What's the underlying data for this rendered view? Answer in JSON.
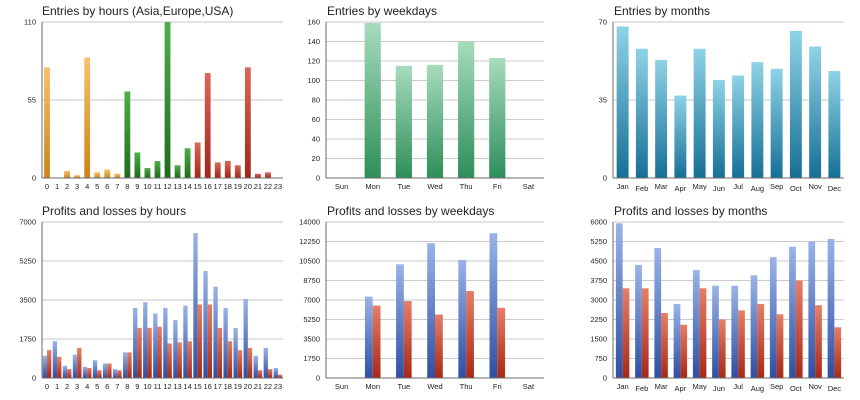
{
  "colors": {
    "hour_asia_top": "#f6c26e",
    "hour_asia_bottom": "#c98418",
    "hour_europe_top": "#4fae4a",
    "hour_europe_bottom": "#1e6b1b",
    "hour_usa_top": "#d8695a",
    "hour_usa_bottom": "#a02618",
    "weekday_top": "#a6dcbd",
    "weekday_bottom": "#2e8e5a",
    "month_top": "#8fd3e6",
    "month_bottom": "#166f96",
    "profit_top": "#9ab3e8",
    "profit_bottom": "#2e4fa3",
    "loss_top": "#e57f68",
    "loss_bottom": "#a82816",
    "grid": "#b8b8b8",
    "axis": "#6a6a6a"
  },
  "chart_data": [
    {
      "type": "bar",
      "title": "Entries by hours (Asia,Europe,USA)",
      "categories": [
        "0",
        "1",
        "2",
        "3",
        "4",
        "5",
        "6",
        "7",
        "8",
        "9",
        "10",
        "11",
        "12",
        "13",
        "14",
        "15",
        "16",
        "17",
        "18",
        "19",
        "20",
        "21",
        "22",
        "23"
      ],
      "values": [
        78,
        0,
        5,
        2,
        85,
        4,
        6,
        3,
        61,
        18,
        7,
        12,
        110,
        9,
        21,
        25,
        74,
        11,
        12,
        9,
        78,
        3,
        4,
        0
      ],
      "groups": [
        "asia",
        "asia",
        "asia",
        "asia",
        "asia",
        "asia",
        "asia",
        "asia",
        "europe",
        "europe",
        "europe",
        "europe",
        "europe",
        "europe",
        "europe",
        "usa",
        "usa",
        "usa",
        "usa",
        "usa",
        "usa",
        "usa",
        "usa",
        "usa"
      ],
      "yticks": [
        0,
        55,
        110
      ],
      "ylim": [
        0,
        110
      ]
    },
    {
      "type": "bar",
      "title": "Entries by weekdays",
      "categories": [
        "Sun",
        "Mon",
        "Tue",
        "Wed",
        "Thu",
        "Fri",
        "Sat"
      ],
      "values": [
        0,
        159,
        115,
        116,
        140,
        123,
        0
      ],
      "yticks": [
        0,
        20,
        40,
        60,
        80,
        100,
        120,
        140,
        160
      ],
      "ylim": [
        0,
        160
      ]
    },
    {
      "type": "bar",
      "title": "Entries by months",
      "categories": [
        "Jan",
        "Feb",
        "Mar",
        "Apr",
        "May",
        "Jun",
        "Jul",
        "Aug",
        "Sep",
        "Oct",
        "Nov",
        "Dec"
      ],
      "values": [
        68,
        58,
        53,
        37,
        58,
        44,
        46,
        52,
        49,
        66,
        59,
        48
      ],
      "yticks": [
        0,
        35,
        70
      ],
      "ylim": [
        0,
        70
      ]
    },
    {
      "type": "bar",
      "title": "Profits and losses by hours",
      "categories": [
        "0",
        "1",
        "2",
        "3",
        "4",
        "5",
        "6",
        "7",
        "8",
        "9",
        "10",
        "11",
        "12",
        "13",
        "14",
        "15",
        "16",
        "17",
        "18",
        "19",
        "20",
        "21",
        "22",
        "23"
      ],
      "series": [
        {
          "values": [
            1000,
            1650,
            550,
            1050,
            500,
            800,
            650,
            400,
            1150,
            3150,
            3400,
            2900,
            3150,
            2600,
            3250,
            6500,
            4800,
            4100,
            3150,
            2250,
            3550,
            1000,
            1350,
            450
          ]
        },
        {
          "values": [
            1250,
            950,
            400,
            1350,
            450,
            350,
            650,
            350,
            1150,
            2250,
            2250,
            2300,
            1550,
            1600,
            1650,
            3300,
            3300,
            2250,
            1650,
            1250,
            1350,
            350,
            400,
            150
          ]
        }
      ],
      "yticks": [
        0,
        1750,
        3500,
        5250,
        7000
      ],
      "ylim": [
        0,
        7000
      ]
    },
    {
      "type": "bar",
      "title": "Profits and losses by weekdays",
      "categories": [
        "Sun",
        "Mon",
        "Tue",
        "Wed",
        "Thu",
        "Fri",
        "Sat"
      ],
      "series": [
        {
          "values": [
            0,
            7300,
            10200,
            12100,
            10600,
            13000,
            0
          ]
        },
        {
          "values": [
            0,
            6500,
            6900,
            5700,
            7800,
            6300,
            0
          ]
        }
      ],
      "yticks": [
        0,
        1750,
        3500,
        5250,
        7000,
        8750,
        10500,
        12250,
        14000
      ],
      "ylim": [
        0,
        14000
      ]
    },
    {
      "type": "bar",
      "title": "Profits and losses by months",
      "categories": [
        "Jan",
        "Feb",
        "Mar",
        "Apr",
        "May",
        "Jun",
        "Jul",
        "Aug",
        "Sep",
        "Oct",
        "Nov",
        "Dec"
      ],
      "series": [
        {
          "values": [
            5950,
            4350,
            5000,
            2850,
            4150,
            3550,
            3550,
            3950,
            4650,
            5050,
            5250,
            5350
          ]
        },
        {
          "values": [
            3450,
            3450,
            2500,
            2050,
            3450,
            2250,
            2600,
            2850,
            2450,
            3750,
            2800,
            1950
          ]
        }
      ],
      "yticks": [
        0,
        750,
        1500,
        2250,
        3000,
        3750,
        4500,
        5250,
        6000
      ],
      "ylim": [
        0,
        6000
      ]
    }
  ]
}
